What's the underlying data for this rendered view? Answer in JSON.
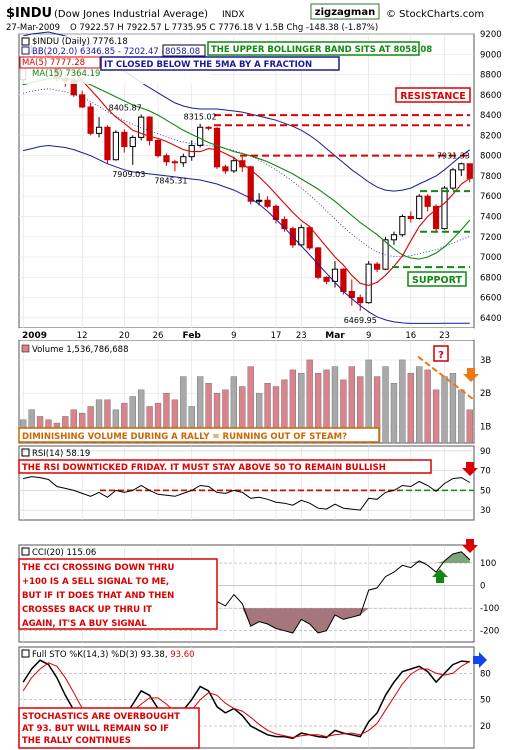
{
  "header": {
    "symbol": "$INDU",
    "name": "(Dow Jones Industrial Average)",
    "exchange": "INDX",
    "brand": "© StockCharts.com",
    "author": "zigzagman",
    "date": "27-Mar-2009",
    "ohlc": "O 7922.57   H 7922.57   L 7735.95   C 7776.18   V 1.5B   Chg -148.38 (-1.87%)",
    "chg_arrow": "▼"
  },
  "legend": {
    "price": "$INDU (Daily) 7776.18",
    "bb": "BB(20,2.0) 6346.85 - 7202.47 -",
    "bb_upper_value": "8058.08",
    "ma5": "MA(5) 7777.28",
    "ma15": "MA(15) 7364.19"
  },
  "annotations": {
    "bb_note": "THE UPPER BOLLINGER BAND SITS AT 8058.08",
    "ma_note": "IT CLOSED BELOW THE 5MA BY A FRACTION",
    "resistance": "RESISTANCE",
    "support": "SUPPORT",
    "volume_note": "DIMINISHING VOLUME DURING A RALLY = RUNNING OUT OF STEAM?",
    "volume_q": "?",
    "rsi_note": "THE RSI DOWNTICKED FRIDAY.  IT MUST STAY ABOVE 50 TO REMAIN BULLISH",
    "cci_note": [
      "THE CCI CROSSING DOWN THRU",
      "+100 IS A SELL SIGNAL TO ME,",
      "BUT IF IT DOES THAT AND THEN",
      "CROSSES BACK UP THRU IT",
      "AGAIN, IT'S A BUY SIGNAL"
    ],
    "sto_note": [
      "STOCHASTICS ARE OVERBOUGHT",
      "AT 93. BUT WILL REMAIN SO IF",
      "THE RALLY CONTINUES"
    ]
  },
  "colors": {
    "up_candle": "#000000",
    "down_candle": "#cc0000",
    "bollinger": "#1a1a99",
    "ma5": "#dd0000",
    "ma15": "#118811",
    "resistance": "#dd0000",
    "support": "#118811",
    "volume_down": "#d9848c",
    "volume_up": "#a9a9a9",
    "annotation_box": "#ffffff",
    "gray_panel": "#f0f0f0"
  },
  "chart_data": [
    {
      "type": "candlestick",
      "title": "$INDU (Daily) 7776.18",
      "ylim": [
        6300,
        9200
      ],
      "y_ticks": [
        6400,
        6600,
        6800,
        7000,
        7200,
        7400,
        7600,
        7800,
        8000,
        8200,
        8400,
        8600,
        8800,
        9000,
        9200
      ],
      "x_tick_labels": [
        "2009",
        "12",
        "20",
        "26",
        "Feb",
        "9",
        "17",
        "23",
        "Mar",
        "9",
        "16",
        "23"
      ],
      "candles": [
        {
          "o": 8750,
          "h": 8990,
          "l": 8700,
          "c": 8950
        },
        {
          "o": 8950,
          "h": 9090,
          "l": 8880,
          "c": 9020
        },
        {
          "o": 9010,
          "h": 9090,
          "l": 8950,
          "c": 9000
        },
        {
          "o": 9000,
          "h": 9010,
          "l": 8940,
          "c": 8980
        },
        {
          "o": 8980,
          "h": 8990,
          "l": 8730,
          "c": 8760
        },
        {
          "o": 8760,
          "h": 8800,
          "l": 8680,
          "c": 8740
        },
        {
          "o": 8740,
          "h": 8770,
          "l": 8580,
          "c": 8600
        },
        {
          "o": 8600,
          "h": 8640,
          "l": 8470,
          "c": 8480
        },
        {
          "o": 8480,
          "h": 8520,
          "l": 8200,
          "c": 8220
        },
        {
          "o": 8220,
          "h": 8380,
          "l": 8180,
          "c": 8280
        },
        {
          "o": 8280,
          "h": 8300,
          "l": 7920,
          "c": 7960
        },
        {
          "o": 7960,
          "h": 8250,
          "l": 7950,
          "c": 8230
        },
        {
          "o": 8230,
          "h": 8260,
          "l": 8030,
          "c": 8090
        },
        {
          "o": 8090,
          "h": 8200,
          "l": 7909,
          "c": 8180
        },
        {
          "o": 8180,
          "h": 8406,
          "l": 8150,
          "c": 8380
        },
        {
          "o": 8380,
          "h": 8390,
          "l": 8100,
          "c": 8150
        },
        {
          "o": 8150,
          "h": 8170,
          "l": 7980,
          "c": 8000
        },
        {
          "o": 8000,
          "h": 8020,
          "l": 7900,
          "c": 7940
        },
        {
          "o": 7940,
          "h": 7960,
          "l": 7845,
          "c": 7930
        },
        {
          "o": 7930,
          "h": 8020,
          "l": 7890,
          "c": 7990
        },
        {
          "o": 7990,
          "h": 8150,
          "l": 7950,
          "c": 8100
        },
        {
          "o": 8100,
          "h": 8315,
          "l": 8080,
          "c": 8280
        },
        {
          "o": 8280,
          "h": 8290,
          "l": 8250,
          "c": 8270
        },
        {
          "o": 8270,
          "h": 8280,
          "l": 7870,
          "c": 7890
        },
        {
          "o": 7890,
          "h": 7910,
          "l": 7820,
          "c": 7850
        },
        {
          "o": 7850,
          "h": 7990,
          "l": 7830,
          "c": 7950
        },
        {
          "o": 7950,
          "h": 7990,
          "l": 7840,
          "c": 7890
        },
        {
          "o": 7890,
          "h": 7900,
          "l": 7520,
          "c": 7550
        },
        {
          "o": 7550,
          "h": 7630,
          "l": 7510,
          "c": 7560
        },
        {
          "o": 7560,
          "h": 7600,
          "l": 7480,
          "c": 7500
        },
        {
          "o": 7500,
          "h": 7520,
          "l": 7330,
          "c": 7370
        },
        {
          "o": 7370,
          "h": 7400,
          "l": 7250,
          "c": 7280
        },
        {
          "o": 7280,
          "h": 7300,
          "l": 7090,
          "c": 7120
        },
        {
          "o": 7120,
          "h": 7320,
          "l": 7100,
          "c": 7290
        },
        {
          "o": 7290,
          "h": 7310,
          "l": 7070,
          "c": 7090
        },
        {
          "o": 7090,
          "h": 7100,
          "l": 6780,
          "c": 6800
        },
        {
          "o": 6800,
          "h": 6810,
          "l": 6730,
          "c": 6760
        },
        {
          "o": 6760,
          "h": 6960,
          "l": 6700,
          "c": 6880
        },
        {
          "o": 6880,
          "h": 6890,
          "l": 6630,
          "c": 6660
        },
        {
          "o": 6660,
          "h": 6780,
          "l": 6520,
          "c": 6600
        },
        {
          "o": 6600,
          "h": 6630,
          "l": 6470,
          "c": 6550
        },
        {
          "o": 6550,
          "h": 6960,
          "l": 6540,
          "c": 6930
        },
        {
          "o": 6930,
          "h": 6950,
          "l": 6850,
          "c": 6880
        },
        {
          "o": 6880,
          "h": 7200,
          "l": 6870,
          "c": 7170
        },
        {
          "o": 7170,
          "h": 7250,
          "l": 7120,
          "c": 7220
        },
        {
          "o": 7220,
          "h": 7420,
          "l": 7200,
          "c": 7400
        },
        {
          "o": 7400,
          "h": 7450,
          "l": 7340,
          "c": 7380
        },
        {
          "o": 7380,
          "h": 7620,
          "l": 7370,
          "c": 7600
        },
        {
          "o": 7600,
          "h": 7620,
          "l": 7450,
          "c": 7500
        },
        {
          "o": 7500,
          "h": 7520,
          "l": 7240,
          "c": 7280
        },
        {
          "o": 7280,
          "h": 7700,
          "l": 7270,
          "c": 7680
        },
        {
          "o": 7680,
          "h": 7880,
          "l": 7660,
          "c": 7860
        },
        {
          "o": 7860,
          "h": 7931,
          "l": 7800,
          "c": 7920
        },
        {
          "o": 7920,
          "h": 7923,
          "l": 7736,
          "c": 7776
        }
      ],
      "ma5": [
        8880,
        8930,
        8950,
        8960,
        8940,
        8890,
        8820,
        8740,
        8650,
        8560,
        8460,
        8380,
        8320,
        8250,
        8220,
        8190,
        8170,
        8140,
        8100,
        8060,
        8040,
        8040,
        8070,
        8060,
        8020,
        7980,
        7920,
        7860,
        7790,
        7710,
        7620,
        7530,
        7440,
        7360,
        7300,
        7200,
        7100,
        7000,
        6920,
        6820,
        6740,
        6720,
        6750,
        6820,
        6910,
        7010,
        7160,
        7300,
        7400,
        7470,
        7530,
        7620,
        7720,
        7777
      ],
      "ma15": [
        8700,
        8720,
        8740,
        8760,
        8760,
        8760,
        8750,
        8730,
        8700,
        8660,
        8620,
        8580,
        8540,
        8500,
        8470,
        8440,
        8400,
        8350,
        8300,
        8250,
        8210,
        8170,
        8130,
        8100,
        8070,
        8040,
        8020,
        8000,
        7970,
        7940,
        7900,
        7860,
        7820,
        7770,
        7720,
        7670,
        7610,
        7550,
        7480,
        7410,
        7340,
        7280,
        7220,
        7150,
        7080,
        7020,
        6990,
        6980,
        7000,
        7040,
        7100,
        7180,
        7270,
        7364
      ],
      "bb_upper": [
        9180,
        9200,
        9210,
        9220,
        9200,
        9180,
        9150,
        9120,
        9070,
        9010,
        8950,
        8890,
        8830,
        8780,
        8720,
        8670,
        8620,
        8570,
        8520,
        8490,
        8470,
        8460,
        8460,
        8460,
        8450,
        8440,
        8430,
        8410,
        8390,
        8370,
        8350,
        8320,
        8290,
        8250,
        8200,
        8140,
        8070,
        8000,
        7930,
        7860,
        7800,
        7740,
        7690,
        7660,
        7650,
        7660,
        7680,
        7720,
        7760,
        7800,
        7860,
        7930,
        8000,
        8058
      ],
      "bb_lower": [
        8050,
        8070,
        8090,
        8100,
        8090,
        8080,
        8060,
        8030,
        8000,
        7960,
        7920,
        7890,
        7860,
        7840,
        7830,
        7820,
        7810,
        7800,
        7790,
        7780,
        7770,
        7760,
        7740,
        7720,
        7690,
        7660,
        7620,
        7580,
        7520,
        7450,
        7370,
        7290,
        7200,
        7110,
        7020,
        6930,
        6840,
        6750,
        6660,
        6590,
        6520,
        6460,
        6410,
        6380,
        6360,
        6350,
        6345,
        6345,
        6345,
        6345,
        6346,
        6346,
        6346,
        6347
      ],
      "price_labels": [
        {
          "i": 14,
          "value": "8405.87"
        },
        {
          "i": 21,
          "value": "8315.02"
        },
        {
          "i": 13,
          "value": "7909.03"
        },
        {
          "i": 18,
          "value": "7845.31"
        },
        {
          "i": 40,
          "value": "6469.95"
        },
        {
          "i": 52,
          "value": "7931.33"
        }
      ],
      "resistance_levels": [
        8400,
        8300,
        8000
      ],
      "support_levels": [
        7650,
        7250,
        6900
      ]
    },
    {
      "type": "bar",
      "title": "Volume 1,536,786,688",
      "ylim": [
        0.5,
        3.6
      ],
      "y_ticks": [
        "1B",
        "2B",
        "3B"
      ],
      "values": [
        1.2,
        1.5,
        1.3,
        1.2,
        1.1,
        1.3,
        1.5,
        1.4,
        1.6,
        1.8,
        1.8,
        1.5,
        1.7,
        1.9,
        2.1,
        1.6,
        1.7,
        2.0,
        1.8,
        2.5,
        1.6,
        2.5,
        2.3,
        2.0,
        2.1,
        2.5,
        2.2,
        2.8,
        2.0,
        2.3,
        2.2,
        2.4,
        2.7,
        2.6,
        3.0,
        2.6,
        2.7,
        2.8,
        2.4,
        2.8,
        2.5,
        3.0,
        2.5,
        2.8,
        2.3,
        3.0,
        2.6,
        2.8,
        2.7,
        2.1,
        2.5,
        2.6,
        2.1,
        1.5
      ],
      "up_days": [
        true,
        true,
        false,
        false,
        false,
        false,
        false,
        false,
        false,
        true,
        false,
        true,
        false,
        true,
        true,
        false,
        false,
        false,
        false,
        true,
        true,
        true,
        false,
        false,
        false,
        true,
        false,
        false,
        true,
        false,
        false,
        false,
        false,
        true,
        false,
        false,
        false,
        true,
        false,
        false,
        false,
        true,
        false,
        true,
        true,
        true,
        false,
        true,
        false,
        false,
        true,
        true,
        true,
        false
      ]
    },
    {
      "type": "line",
      "title": "RSI(14) 58.19",
      "ylim": [
        20,
        95
      ],
      "y_ticks": [
        30,
        50,
        70,
        90
      ],
      "values": [
        62,
        64,
        63,
        61,
        54,
        52,
        50,
        47,
        44,
        48,
        43,
        50,
        48,
        50,
        55,
        50,
        46,
        45,
        44,
        47,
        50,
        55,
        54,
        48,
        47,
        50,
        48,
        42,
        43,
        41,
        38,
        37,
        35,
        40,
        37,
        32,
        31,
        36,
        32,
        31,
        30,
        42,
        41,
        48,
        50,
        55,
        54,
        59,
        55,
        49,
        57,
        62,
        63,
        58
      ]
    },
    {
      "type": "line",
      "title": "CCI(20) 115.06",
      "ylim": [
        -250,
        180
      ],
      "y_ticks": [
        -200,
        -100,
        0,
        100
      ],
      "values": [
        20,
        50,
        40,
        30,
        -40,
        -60,
        -90,
        -120,
        -160,
        -110,
        -180,
        -90,
        -120,
        -60,
        20,
        -30,
        -70,
        -80,
        -100,
        -50,
        10,
        70,
        60,
        -70,
        -90,
        -40,
        -80,
        -180,
        -160,
        -170,
        -190,
        -200,
        -210,
        -150,
        -170,
        -210,
        -200,
        -130,
        -150,
        -140,
        -130,
        -20,
        -10,
        40,
        60,
        90,
        80,
        110,
        90,
        60,
        110,
        140,
        150,
        115
      ]
    },
    {
      "type": "line",
      "title": "Full STO %K(14,3) %D(3) 93.38, 93.60",
      "ylim": [
        -5,
        110
      ],
      "y_ticks": [
        20,
        50,
        80
      ],
      "series": [
        {
          "name": "%K(14,3)",
          "values": [
            70,
            85,
            95,
            90,
            75,
            55,
            38,
            25,
            18,
            25,
            22,
            35,
            30,
            45,
            60,
            55,
            40,
            32,
            30,
            38,
            50,
            65,
            60,
            42,
            35,
            40,
            32,
            20,
            15,
            10,
            8,
            8,
            6,
            12,
            10,
            8,
            7,
            15,
            12,
            10,
            8,
            25,
            35,
            55,
            70,
            82,
            85,
            88,
            82,
            70,
            80,
            90,
            94,
            93
          ]
        },
        {
          "name": "%D(3)",
          "values": [
            60,
            75,
            85,
            92,
            88,
            75,
            58,
            40,
            28,
            22,
            22,
            28,
            30,
            37,
            45,
            52,
            52,
            45,
            36,
            32,
            38,
            50,
            58,
            55,
            46,
            40,
            37,
            30,
            22,
            15,
            11,
            9,
            7,
            9,
            10,
            10,
            8,
            10,
            11,
            12,
            10,
            15,
            23,
            38,
            53,
            68,
            79,
            85,
            85,
            80,
            78,
            80,
            88,
            93.6
          ]
        }
      ]
    }
  ]
}
